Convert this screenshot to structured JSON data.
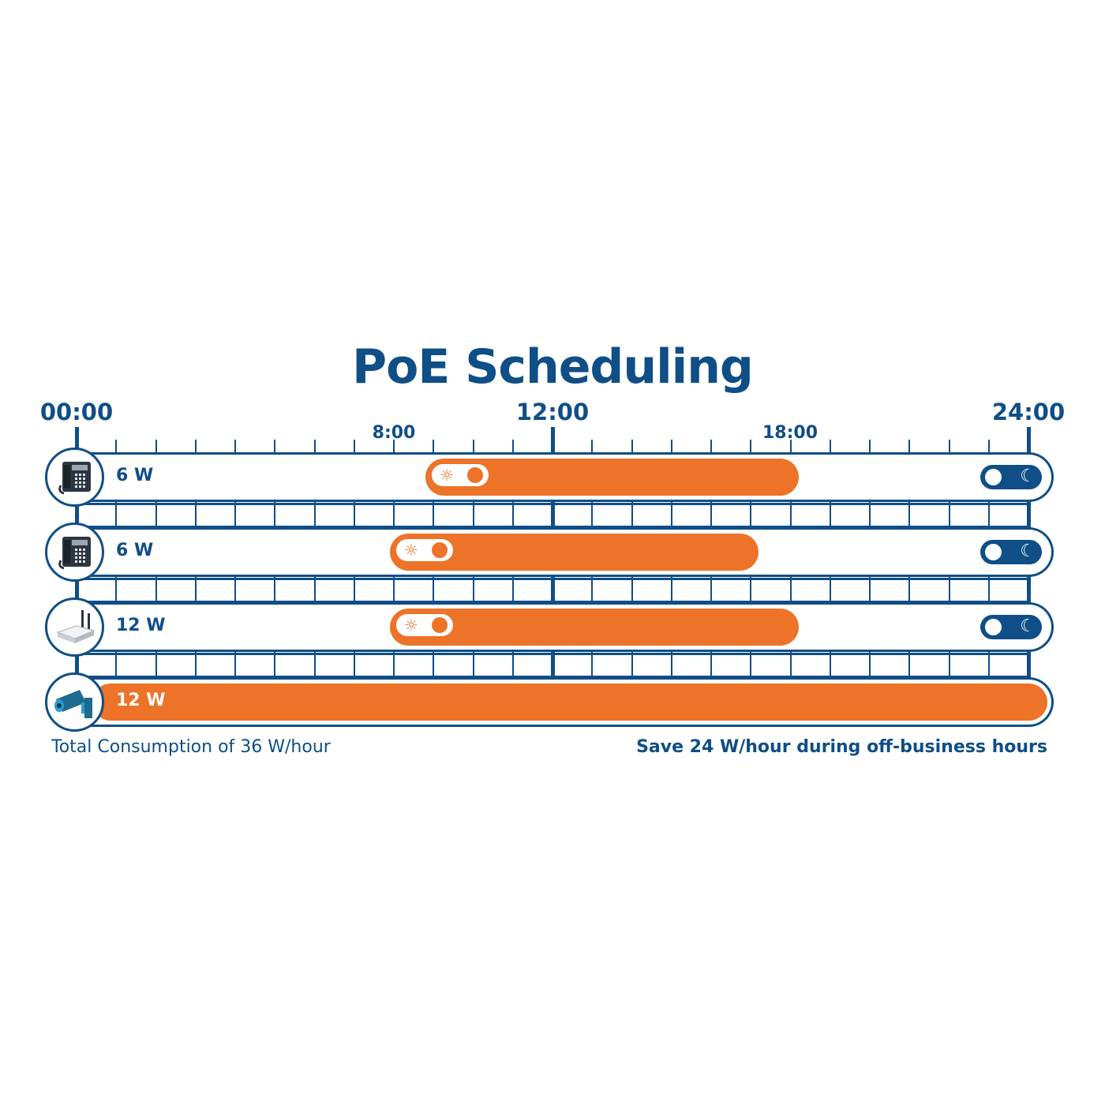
{
  "title": "PoE Scheduling",
  "axis": {
    "start": "00:00",
    "mid": "12:00",
    "end": "24:00",
    "minor_labels": [
      "8:00",
      "18:00"
    ]
  },
  "colors": {
    "navy": "#0f4e86",
    "orange": "#ec7328"
  },
  "devices": [
    {
      "icon": "desk-phone-icon",
      "watts": "6 W",
      "on_hour": 8.8,
      "off_hour": 18.2,
      "scheduled": true
    },
    {
      "icon": "desk-phone-icon",
      "watts": "6 W",
      "on_hour": 7.9,
      "off_hour": 17.2,
      "scheduled": true
    },
    {
      "icon": "wireless-access-point-icon",
      "watts": "12 W",
      "on_hour": 7.9,
      "off_hour": 18.2,
      "scheduled": true
    },
    {
      "icon": "security-camera-icon",
      "watts": "12 W",
      "on_hour": 0,
      "off_hour": 24,
      "scheduled": false
    }
  ],
  "footer": {
    "total": "Total Consumption of 36 W/hour",
    "savings": "Save 24 W/hour during off-business hours"
  }
}
